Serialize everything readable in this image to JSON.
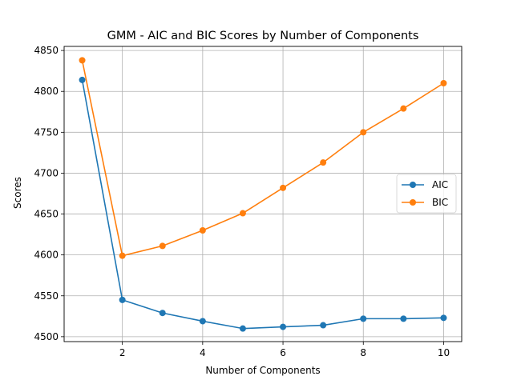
{
  "chart_data": {
    "type": "line",
    "title": "GMM - AIC and BIC Scores by Number of Components",
    "xlabel": "Number of Components",
    "ylabel": "Scores",
    "x": [
      1,
      2,
      3,
      4,
      5,
      6,
      7,
      8,
      9,
      10
    ],
    "xticks": [
      2,
      4,
      6,
      8,
      10
    ],
    "yticks": [
      4500,
      4550,
      4600,
      4650,
      4700,
      4750,
      4800,
      4850
    ],
    "xlim": [
      0.55,
      10.45
    ],
    "ylim": [
      4494,
      4855
    ],
    "grid": true,
    "legend_position": "center-right",
    "series": [
      {
        "name": "AIC",
        "color": "#1f77b4",
        "values": [
          4814,
          4545,
          4529,
          4519,
          4510,
          4512,
          4514,
          4522,
          4522,
          4523
        ]
      },
      {
        "name": "BIC",
        "color": "#ff7f0e",
        "values": [
          4838,
          4599,
          4611,
          4630,
          4651,
          4682,
          4713,
          4750,
          4779,
          4810
        ]
      }
    ]
  }
}
